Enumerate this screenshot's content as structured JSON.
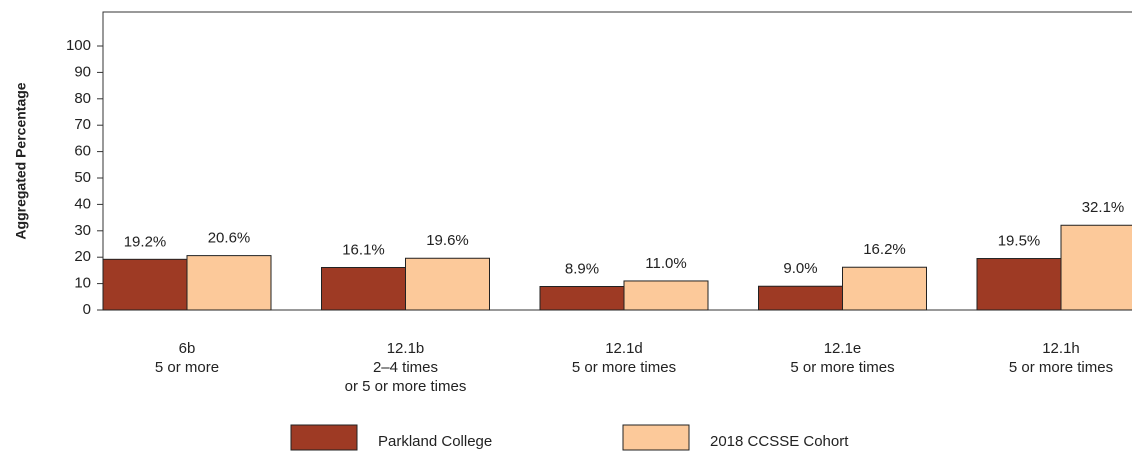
{
  "chart_data": {
    "type": "bar",
    "y_label": "Aggregated Percentage",
    "categories": [
      "6b\n5 or more",
      "12.1b\n2–4 times\nor 5 or more times",
      "12.1d\n5 or more times",
      "12.1e\n5 or more times",
      "12.1h\n5 or more times"
    ],
    "series": [
      {
        "name": "Parkland College",
        "color": "#9e3a24",
        "values": [
          19.2,
          16.1,
          8.9,
          9.0,
          19.5
        ],
        "value_labels": [
          "19.2%",
          "16.1%",
          "8.9%",
          "9.0%",
          "19.5%"
        ]
      },
      {
        "name": "2018 CCSSE Cohort",
        "color": "#fcc99a",
        "values": [
          20.6,
          19.6,
          11.0,
          16.2,
          32.1
        ],
        "value_labels": [
          "20.6%",
          "19.6%",
          "11.0%",
          "16.2%",
          "32.1%"
        ]
      }
    ],
    "ylim": [
      0,
      100
    ],
    "yticks": [
      0,
      10,
      20,
      30,
      40,
      50,
      60,
      70,
      80,
      90,
      100
    ],
    "grid": false
  }
}
